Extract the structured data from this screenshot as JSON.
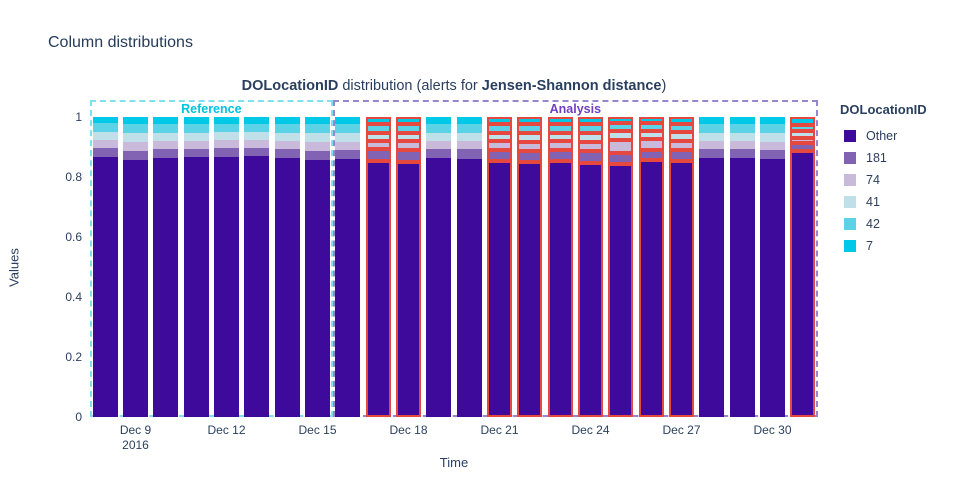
{
  "page": {
    "heading": "Column distributions"
  },
  "chart": {
    "title": {
      "bold1": "DOLocationID",
      "mid": " distribution (alerts for ",
      "bold2": "Jensen-Shannon distance",
      "end": ")"
    },
    "xlabel": "Time",
    "ylabel": "Values",
    "regions": {
      "reference_label": "Reference",
      "analysis_label": "Analysis"
    }
  },
  "legend": {
    "title": "DOLocationID",
    "items": [
      {
        "label": "Other",
        "color": "#3d0a9b"
      },
      {
        "label": "181",
        "color": "#8263b3"
      },
      {
        "label": "74",
        "color": "#c9b9db"
      },
      {
        "label": "41",
        "color": "#bfe0e9"
      },
      {
        "label": "42",
        "color": "#5cd2e6"
      },
      {
        "label": "7",
        "color": "#00c9e8"
      }
    ]
  },
  "colors": {
    "text": "#2a3f5f",
    "alert_outline": "#e4483e",
    "reference_dash": "#7de1ef",
    "reference_label": "#00c3e0",
    "analysis_dash": "#9886cd",
    "analysis_label": "#7040bf",
    "background": "#ffffff"
  },
  "chart_data": {
    "type": "bar",
    "stacked": true,
    "title": "DOLocationID distribution (alerts for Jensen-Shannon distance)",
    "xlabel": "Time",
    "ylabel": "Values",
    "ylim": [
      0,
      1
    ],
    "yticks": [
      "1",
      "0.8",
      "0.6",
      "0.4",
      "0.2",
      "0"
    ],
    "ytick_values": [
      1,
      0.8,
      0.6,
      0.4,
      0.2,
      0
    ],
    "grid": false,
    "legend_position": "right",
    "series_order_bottom_to_top": [
      "Other",
      "181",
      "74",
      "41",
      "42",
      "7"
    ],
    "series_colors": {
      "Other": "#3d0a9b",
      "181": "#8263b3",
      "74": "#c9b9db",
      "41": "#bfe0e9",
      "42": "#5cd2e6",
      "7": "#00c9e8"
    },
    "regions": [
      {
        "name": "Reference",
        "start_index": 0,
        "end_index": 8
      },
      {
        "name": "Analysis",
        "start_index": 8,
        "end_index": 24
      }
    ],
    "xticks": [
      {
        "index": 1,
        "label": "Dec 9",
        "sublabel": "2016"
      },
      {
        "index": 4,
        "label": "Dec 12",
        "sublabel": ""
      },
      {
        "index": 7,
        "label": "Dec 15",
        "sublabel": ""
      },
      {
        "index": 10,
        "label": "Dec 18",
        "sublabel": ""
      },
      {
        "index": 13,
        "label": "Dec 21",
        "sublabel": ""
      },
      {
        "index": 16,
        "label": "Dec 24",
        "sublabel": ""
      },
      {
        "index": 19,
        "label": "Dec 27",
        "sublabel": ""
      },
      {
        "index": 22,
        "label": "Dec 30",
        "sublabel": ""
      }
    ],
    "bars": [
      {
        "date": "Dec 8",
        "alert": false,
        "values": {
          "Other": 0.868,
          "181": 0.027,
          "74": 0.027,
          "41": 0.027,
          "42": 0.031,
          "7": 0.02
        }
      },
      {
        "date": "Dec 9",
        "alert": false,
        "values": {
          "Other": 0.858,
          "181": 0.03,
          "74": 0.03,
          "41": 0.03,
          "42": 0.03,
          "7": 0.022
        }
      },
      {
        "date": "Dec 10",
        "alert": false,
        "values": {
          "Other": 0.863,
          "181": 0.029,
          "74": 0.028,
          "41": 0.028,
          "42": 0.03,
          "7": 0.022
        }
      },
      {
        "date": "Dec 11",
        "alert": false,
        "values": {
          "Other": 0.865,
          "181": 0.028,
          "74": 0.028,
          "41": 0.027,
          "42": 0.03,
          "7": 0.022
        }
      },
      {
        "date": "Dec 12",
        "alert": false,
        "values": {
          "Other": 0.867,
          "181": 0.028,
          "74": 0.028,
          "41": 0.026,
          "42": 0.029,
          "7": 0.022
        }
      },
      {
        "date": "Dec 13",
        "alert": false,
        "values": {
          "Other": 0.871,
          "181": 0.027,
          "74": 0.026,
          "41": 0.026,
          "42": 0.028,
          "7": 0.022
        }
      },
      {
        "date": "Dec 14",
        "alert": false,
        "values": {
          "Other": 0.864,
          "181": 0.028,
          "74": 0.028,
          "41": 0.028,
          "42": 0.03,
          "7": 0.022
        }
      },
      {
        "date": "Dec 15",
        "alert": false,
        "values": {
          "Other": 0.858,
          "181": 0.03,
          "74": 0.03,
          "41": 0.03,
          "42": 0.03,
          "7": 0.022
        }
      },
      {
        "date": "Dec 16",
        "alert": false,
        "values": {
          "Other": 0.86,
          "181": 0.03,
          "74": 0.028,
          "41": 0.028,
          "42": 0.032,
          "7": 0.022
        }
      },
      {
        "date": "Dec 17",
        "alert": true,
        "values": {
          "Other": 0.852,
          "181": 0.04,
          "74": 0.028,
          "41": 0.028,
          "42": 0.03,
          "7": 0.022
        }
      },
      {
        "date": "Dec 18",
        "alert": true,
        "values": {
          "Other": 0.85,
          "181": 0.04,
          "74": 0.03,
          "41": 0.028,
          "42": 0.03,
          "7": 0.022
        }
      },
      {
        "date": "Dec 19",
        "alert": false,
        "values": {
          "Other": 0.862,
          "181": 0.03,
          "74": 0.028,
          "41": 0.028,
          "42": 0.03,
          "7": 0.022
        }
      },
      {
        "date": "Dec 20",
        "alert": false,
        "values": {
          "Other": 0.86,
          "181": 0.032,
          "74": 0.028,
          "41": 0.028,
          "42": 0.03,
          "7": 0.022
        }
      },
      {
        "date": "Dec 21",
        "alert": true,
        "values": {
          "Other": 0.852,
          "181": 0.038,
          "74": 0.03,
          "41": 0.028,
          "42": 0.03,
          "7": 0.022
        }
      },
      {
        "date": "Dec 22",
        "alert": true,
        "values": {
          "Other": 0.85,
          "181": 0.038,
          "74": 0.03,
          "41": 0.03,
          "42": 0.03,
          "7": 0.022
        }
      },
      {
        "date": "Dec 23",
        "alert": true,
        "values": {
          "Other": 0.852,
          "181": 0.038,
          "74": 0.03,
          "41": 0.028,
          "42": 0.03,
          "7": 0.022
        }
      },
      {
        "date": "Dec 24",
        "alert": true,
        "values": {
          "Other": 0.848,
          "181": 0.04,
          "74": 0.03,
          "41": 0.03,
          "42": 0.03,
          "7": 0.022
        }
      },
      {
        "date": "Dec 25",
        "alert": true,
        "values": {
          "Other": 0.845,
          "181": 0.035,
          "74": 0.045,
          "41": 0.03,
          "42": 0.025,
          "7": 0.02
        }
      },
      {
        "date": "Dec 26",
        "alert": true,
        "values": {
          "Other": 0.855,
          "181": 0.035,
          "74": 0.035,
          "41": 0.028,
          "42": 0.027,
          "7": 0.02
        }
      },
      {
        "date": "Dec 27",
        "alert": true,
        "values": {
          "Other": 0.852,
          "181": 0.038,
          "74": 0.03,
          "41": 0.03,
          "42": 0.028,
          "7": 0.022
        }
      },
      {
        "date": "Dec 28",
        "alert": false,
        "values": {
          "Other": 0.862,
          "181": 0.03,
          "74": 0.028,
          "41": 0.028,
          "42": 0.03,
          "7": 0.022
        }
      },
      {
        "date": "Dec 29",
        "alert": false,
        "values": {
          "Other": 0.862,
          "181": 0.03,
          "74": 0.028,
          "41": 0.028,
          "42": 0.03,
          "7": 0.022
        }
      },
      {
        "date": "Dec 30",
        "alert": false,
        "values": {
          "Other": 0.86,
          "181": 0.03,
          "74": 0.028,
          "41": 0.03,
          "42": 0.03,
          "7": 0.022
        }
      },
      {
        "date": "Dec 31",
        "alert": true,
        "values": {
          "Other": 0.886,
          "181": 0.028,
          "74": 0.016,
          "41": 0.022,
          "42": 0.022,
          "7": 0.026
        }
      }
    ]
  }
}
